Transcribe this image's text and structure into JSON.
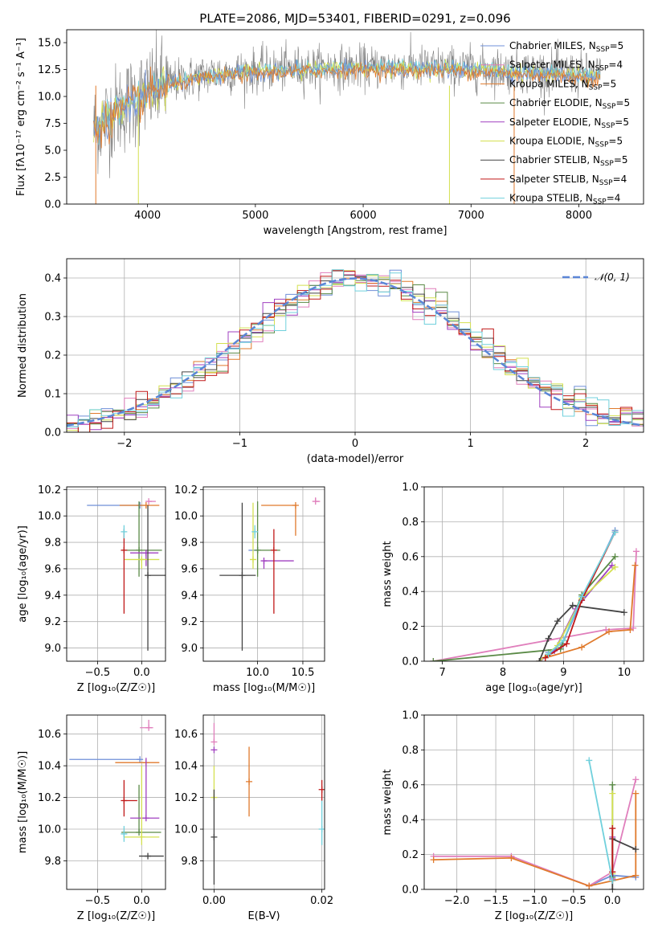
{
  "colors": {
    "chabrier_miles": "#6f8fd8",
    "salpeter_miles": "#e07fbc",
    "kroupa_miles": "#e07a2c",
    "chabrier_elodie": "#5a8a46",
    "salpeter_elodie": "#a040c0",
    "kroupa_elodie": "#d4e050",
    "chabrier_stelib": "#444444",
    "salpeter_stelib": "#c01818",
    "kroupa_stelib": "#70d0dc",
    "grey_data": "#808080",
    "normal_curve": "#5b86d6"
  },
  "chart_data": [
    {
      "type": "line",
      "id": "spectrum",
      "title": "PLATE=2086, MJD=53401, FIBERID=0291, z=0.096",
      "xlabel": "wavelength [Angstrom, rest frame]",
      "ylabel": "Flux [f$_\\lambda$10$^{-17}$ erg cm$^{-2}$ s$^{-1}$ A$^{-1}$]",
      "ylabel_display": "Flux [fλ10⁻¹⁷ erg cm⁻² s⁻¹ A⁻¹]",
      "xlim": [
        3250,
        8600
      ],
      "ylim": [
        0,
        16.2
      ],
      "xticks": [
        "4000",
        "5000",
        "6000",
        "7000",
        "8000"
      ],
      "yticks": [
        "0.0",
        "2.5",
        "5.0",
        "7.5",
        "10.0",
        "12.5",
        "15.0"
      ],
      "legend_position": "top-right",
      "legend": [
        {
          "label": "Chabrier MILES, N",
          "sub": "SSP",
          "tail": "=5",
          "color": "chabrier_miles"
        },
        {
          "label": "Salpeter MILES, N",
          "sub": "SSP",
          "tail": "=4",
          "color": "salpeter_miles"
        },
        {
          "label": "Kroupa MILES, N",
          "sub": "SSP",
          "tail": "=5",
          "color": "kroupa_miles"
        },
        {
          "label": "Chabrier ELODIE, N",
          "sub": "SSP",
          "tail": "=5",
          "color": "chabrier_elodie"
        },
        {
          "label": "Salpeter ELODIE, N",
          "sub": "SSP",
          "tail": "=5",
          "color": "salpeter_elodie"
        },
        {
          "label": "Kroupa ELODIE, N",
          "sub": "SSP",
          "tail": "=5",
          "color": "kroupa_elodie"
        },
        {
          "label": "Chabrier STELIB, N",
          "sub": "SSP",
          "tail": "=5",
          "color": "chabrier_stelib"
        },
        {
          "label": "Salpeter STELIB, N",
          "sub": "SSP",
          "tail": "=4",
          "color": "salpeter_stelib"
        },
        {
          "label": "Kroupa STELIB, N",
          "sub": "SSP",
          "tail": "=4",
          "color": "kroupa_stelib"
        }
      ],
      "continuum": {
        "x": [
          3500,
          3700,
          3900,
          4100,
          4300,
          4600,
          5000,
          5400,
          5800,
          6200,
          6600,
          7000,
          7400,
          7800,
          8200
        ],
        "y": [
          7.0,
          8.6,
          9.8,
          10.9,
          11.5,
          12.1,
          12.4,
          12.6,
          12.7,
          12.7,
          12.7,
          12.6,
          12.4,
          12.2,
          11.9
        ]
      }
    },
    {
      "type": "line",
      "id": "residuals",
      "xlabel": "(data-model)/error",
      "ylabel": "Normed distribution",
      "xlim": [
        -2.5,
        2.5
      ],
      "ylim": [
        0,
        0.45
      ],
      "xticks": [
        "−2",
        "−1",
        "0",
        "1",
        "2"
      ],
      "yticks": [
        "0.0",
        "0.1",
        "0.2",
        "0.3",
        "0.4"
      ],
      "legend_position": "top-right",
      "curve_label": "𝒩(0, 1)",
      "bin_width": 0.1
    },
    {
      "type": "scatter",
      "id": "age_vs_Z",
      "xlabel": "Z [log₁₀(Z/Z☉)]",
      "ylabel": "age  [log₁₀(age/yr)]",
      "xlim": [
        -0.85,
        0.27
      ],
      "ylim": [
        8.9,
        10.22
      ],
      "xticks": [
        "−0.5",
        "0.0"
      ],
      "yticks": [
        "9.0",
        "9.2",
        "9.4",
        "9.6",
        "9.8",
        "10.0",
        "10.2"
      ],
      "points": [
        {
          "m": "chabrier_miles",
          "x": -0.02,
          "xerr": [
            0.6,
            0.02
          ],
          "y": 10.08,
          "yerr": [
            0.0,
            0.0
          ]
        },
        {
          "m": "salpeter_miles",
          "x": 0.08,
          "xerr": [
            0.0,
            0.08
          ],
          "y": 10.11,
          "yerr": [
            0.0,
            0.0
          ]
        },
        {
          "m": "kroupa_miles",
          "x": 0.05,
          "xerr": [
            0.3,
            0.15
          ],
          "y": 10.08,
          "yerr": [
            0.0,
            0.0
          ]
        },
        {
          "m": "chabrier_elodie",
          "x": -0.03,
          "xerr": [
            0.2,
            0.26
          ],
          "y": 9.74,
          "yerr": [
            0.2,
            0.37
          ]
        },
        {
          "m": "salpeter_elodie",
          "x": 0.05,
          "xerr": [
            0.18,
            0.14
          ],
          "y": 9.72,
          "yerr": [
            0.1,
            0.0
          ]
        },
        {
          "m": "kroupa_elodie",
          "x": 0.0,
          "xerr": [
            0.2,
            0.2
          ],
          "y": 9.67,
          "yerr": [
            0.07,
            0.0
          ]
        },
        {
          "m": "chabrier_stelib",
          "x": 0.07,
          "xerr": [
            0.0,
            0.2
          ],
          "y": 9.55,
          "yerr": [
            0.57,
            0.53
          ]
        },
        {
          "m": "salpeter_stelib",
          "x": -0.2,
          "xerr": [
            0.0,
            0.0
          ],
          "y": 9.74,
          "yerr": [
            0.48,
            0.16
          ]
        },
        {
          "m": "kroupa_stelib",
          "x": -0.2,
          "xerr": [
            0.0,
            0.0
          ],
          "y": 9.88,
          "yerr": [
            0.05,
            0.05
          ]
        }
      ]
    },
    {
      "type": "scatter",
      "id": "age_vs_mass",
      "xlabel": "mass [log₁₀(M/M☉)]",
      "ylabel": "",
      "xlim": [
        9.4,
        10.74
      ],
      "ylim": [
        8.9,
        10.22
      ],
      "xticks": [
        "10.0",
        "10.5"
      ],
      "yticks": [
        "9.0",
        "9.2",
        "9.4",
        "9.6",
        "9.8",
        "10.0",
        "10.2"
      ],
      "points": [
        {
          "m": "chabrier_miles",
          "x": 10.0,
          "xerr": [
            0.1,
            0.0
          ],
          "y": 9.74,
          "yerr": [
            0.0,
            0.0
          ]
        },
        {
          "m": "salpeter_miles",
          "x": 10.64,
          "xerr": [
            0.0,
            0.05
          ],
          "y": 10.11,
          "yerr": [
            0.0,
            0.03
          ]
        },
        {
          "m": "kroupa_miles",
          "x": 10.42,
          "xerr": [
            0.38,
            0.0
          ],
          "y": 10.08,
          "yerr": [
            0.23,
            0.0
          ]
        },
        {
          "m": "chabrier_elodie",
          "x": 10.0,
          "xerr": [
            0.0,
            0.25
          ],
          "y": 9.74,
          "yerr": [
            0.2,
            0.37
          ]
        },
        {
          "m": "salpeter_elodie",
          "x": 10.07,
          "xerr": [
            0.0,
            0.33
          ],
          "y": 9.66,
          "yerr": [
            0.06,
            0.0
          ]
        },
        {
          "m": "kroupa_elodie",
          "x": 9.95,
          "xerr": [
            0.0,
            0.0
          ],
          "y": 9.67,
          "yerr": [
            0.07,
            0.43
          ]
        },
        {
          "m": "chabrier_stelib",
          "x": 9.83,
          "xerr": [
            0.25,
            0.15
          ],
          "y": 9.55,
          "yerr": [
            0.57,
            0.55
          ]
        },
        {
          "m": "salpeter_stelib",
          "x": 10.18,
          "xerr": [
            0.0,
            0.0
          ],
          "y": 9.74,
          "yerr": [
            0.48,
            0.16
          ]
        },
        {
          "m": "kroupa_stelib",
          "x": 9.97,
          "xerr": [
            0.0,
            0.0
          ],
          "y": 9.88,
          "yerr": [
            0.05,
            0.05
          ]
        }
      ]
    },
    {
      "type": "line",
      "id": "weight_vs_age",
      "xlabel": "age  [log₁₀(age/yr)]",
      "ylabel": "mass weight",
      "xlim": [
        6.7,
        10.32
      ],
      "ylim": [
        0,
        1.0
      ],
      "xticks": [
        "7",
        "8",
        "9",
        "10"
      ],
      "yticks": [
        "0.0",
        "0.2",
        "0.4",
        "0.6",
        "0.8",
        "1.0"
      ],
      "series": [
        {
          "m": "chabrier_miles",
          "x": [
            8.75,
            8.95,
            9.3,
            9.85
          ],
          "y": [
            0.05,
            0.08,
            0.35,
            0.75
          ]
        },
        {
          "m": "salpeter_miles",
          "x": [
            6.85,
            9.7,
            10.15,
            10.2
          ],
          "y": [
            0.0,
            0.18,
            0.19,
            0.63
          ]
        },
        {
          "m": "kroupa_miles",
          "x": [
            8.7,
            9.3,
            9.75,
            10.1,
            10.18
          ],
          "y": [
            0.02,
            0.08,
            0.17,
            0.18,
            0.55
          ]
        },
        {
          "m": "chabrier_elodie",
          "x": [
            6.85,
            8.95,
            9.3,
            9.85
          ],
          "y": [
            0.0,
            0.07,
            0.38,
            0.6
          ]
        },
        {
          "m": "salpeter_elodie",
          "x": [
            8.6,
            8.85,
            9.2,
            9.8
          ],
          "y": [
            0.0,
            0.06,
            0.3,
            0.55
          ]
        },
        {
          "m": "kroupa_elodie",
          "x": [
            8.6,
            8.9,
            9.3,
            9.85
          ],
          "y": [
            0.0,
            0.09,
            0.36,
            0.54
          ]
        },
        {
          "m": "chabrier_stelib",
          "x": [
            8.6,
            8.75,
            8.9,
            9.15,
            10.0
          ],
          "y": [
            0.0,
            0.13,
            0.23,
            0.32,
            0.28
          ]
        },
        {
          "m": "salpeter_stelib",
          "x": [
            8.7,
            9.05,
            9.3,
            9.85
          ],
          "y": [
            0.02,
            0.1,
            0.35,
            0.74
          ]
        },
        {
          "m": "kroupa_stelib",
          "x": [
            8.75,
            9.0,
            9.3,
            9.85
          ],
          "y": [
            0.04,
            0.12,
            0.37,
            0.74
          ]
        }
      ]
    },
    {
      "type": "scatter",
      "id": "mass_vs_Z",
      "xlabel": "Z [log₁₀(Z/Z☉)]",
      "ylabel": "mass [log₁₀(M/M☉)]",
      "xlim": [
        -0.85,
        0.27
      ],
      "ylim": [
        9.62,
        10.72
      ],
      "xticks": [
        "−0.5",
        "0.0"
      ],
      "yticks": [
        "9.8",
        "10.0",
        "10.2",
        "10.4",
        "10.6"
      ],
      "points": [
        {
          "m": "chabrier_miles",
          "x": -0.02,
          "xerr": [
            0.8,
            0.0
          ],
          "y": 10.44,
          "yerr": [
            0.0,
            0.0
          ]
        },
        {
          "m": "salpeter_miles",
          "x": 0.08,
          "xerr": [
            0.1,
            0.05
          ],
          "y": 10.64,
          "yerr": [
            0.0,
            0.05
          ]
        },
        {
          "m": "kroupa_miles",
          "x": 0.05,
          "xerr": [
            0.35,
            0.15
          ],
          "y": 10.42,
          "yerr": [
            0.0,
            0.0
          ]
        },
        {
          "m": "chabrier_elodie",
          "x": -0.03,
          "xerr": [
            0.2,
            0.25
          ],
          "y": 9.98,
          "yerr": [
            0.0,
            0.3
          ]
        },
        {
          "m": "salpeter_elodie",
          "x": 0.05,
          "xerr": [
            0.18,
            0.15
          ],
          "y": 10.07,
          "yerr": [
            0.0,
            0.38
          ]
        },
        {
          "m": "kroupa_elodie",
          "x": 0.0,
          "xerr": [
            0.2,
            0.2
          ],
          "y": 9.95,
          "yerr": [
            0.05,
            0.45
          ]
        },
        {
          "m": "chabrier_stelib",
          "x": 0.07,
          "xerr": [
            0.1,
            0.18
          ],
          "y": 9.83,
          "yerr": [
            0.0,
            0.0
          ]
        },
        {
          "m": "salpeter_stelib",
          "x": -0.2,
          "xerr": [
            0.0,
            0.15
          ],
          "y": 10.18,
          "yerr": [
            0.1,
            0.13
          ]
        },
        {
          "m": "kroupa_stelib",
          "x": -0.2,
          "xerr": [
            0.0,
            0.0
          ],
          "y": 9.97,
          "yerr": [
            0.05,
            0.05
          ]
        }
      ]
    },
    {
      "type": "scatter",
      "id": "mass_vs_ebv",
      "xlabel": "E(B-V)",
      "ylabel": "",
      "xlim": [
        -0.002,
        0.0205
      ],
      "ylim": [
        9.62,
        10.72
      ],
      "xticks": [
        "0.00",
        "0.02"
      ],
      "yticks": [
        "9.8",
        "10.0",
        "10.2",
        "10.4",
        "10.6"
      ],
      "points": [
        {
          "m": "salpeter_miles",
          "x": 0.0,
          "xerr": [
            0.0,
            0.0
          ],
          "y": 10.55,
          "yerr": [
            0.0,
            0.12
          ]
        },
        {
          "m": "salpeter_elodie",
          "x": 0.0,
          "xerr": [
            0.0,
            0.0
          ],
          "y": 10.5,
          "yerr": [
            0.0,
            0.0
          ]
        },
        {
          "m": "kroupa_elodie",
          "x": 0.0,
          "xerr": [
            0.0,
            0.0
          ],
          "y": 10.2,
          "yerr": [
            0.0,
            0.2
          ]
        },
        {
          "m": "chabrier_stelib",
          "x": 0.0,
          "xerr": [
            0.0,
            0.0
          ],
          "y": 9.95,
          "yerr": [
            0.3,
            0.3
          ]
        },
        {
          "m": "kroupa_miles",
          "x": 0.0065,
          "xerr": [
            0.0,
            0.0
          ],
          "y": 10.3,
          "yerr": [
            0.22,
            0.22
          ]
        },
        {
          "m": "salpeter_stelib",
          "x": 0.02,
          "xerr": [
            0.0,
            0.0
          ],
          "y": 10.25,
          "yerr": [
            0.07,
            0.06
          ]
        },
        {
          "m": "kroupa_stelib",
          "x": 0.02,
          "xerr": [
            0.0,
            0.0
          ],
          "y": 10.0,
          "yerr": [
            0.1,
            0.18
          ]
        }
      ]
    },
    {
      "type": "line",
      "id": "weight_vs_Z",
      "xlabel": "Z [log₁₀(Z/Z☉)]",
      "ylabel": "mass weight",
      "xlim": [
        -2.42,
        0.4
      ],
      "ylim": [
        0,
        1.0
      ],
      "xticks": [
        "−2.0",
        "−1.5",
        "−1.0",
        "−0.5",
        "0.0"
      ],
      "yticks": [
        "0.0",
        "0.2",
        "0.4",
        "0.6",
        "0.8",
        "1.0"
      ],
      "series": [
        {
          "m": "chabrier_miles",
          "x": [
            -0.3,
            0.0,
            0.3
          ],
          "y": [
            0.02,
            0.08,
            0.07
          ]
        },
        {
          "m": "salpeter_miles",
          "x": [
            -2.3,
            -1.3,
            -0.3,
            0.0,
            0.3
          ],
          "y": [
            0.19,
            0.19,
            0.02,
            0.1,
            0.63
          ]
        },
        {
          "m": "kroupa_miles",
          "x": [
            -2.3,
            -1.3,
            -0.3,
            0.0,
            0.3,
            0.3
          ],
          "y": [
            0.17,
            0.18,
            0.02,
            0.05,
            0.08,
            0.55
          ]
        },
        {
          "m": "chabrier_elodie",
          "x": [
            0.0,
            0.0
          ],
          "y": [
            0.07,
            0.6
          ]
        },
        {
          "m": "salpeter_elodie",
          "x": [
            0.0,
            0.0
          ],
          "y": [
            0.06,
            0.3
          ]
        },
        {
          "m": "kroupa_elodie",
          "x": [
            0.0,
            0.0
          ],
          "y": [
            0.09,
            0.55
          ]
        },
        {
          "m": "chabrier_stelib",
          "x": [
            0.0,
            0.0,
            0.3
          ],
          "y": [
            0.0,
            0.29,
            0.23
          ]
        },
        {
          "m": "salpeter_stelib",
          "x": [
            0.0,
            0.0
          ],
          "y": [
            0.1,
            0.35
          ]
        },
        {
          "m": "kroupa_stelib",
          "x": [
            -0.3,
            0.0
          ],
          "y": [
            0.74,
            0.05
          ]
        }
      ]
    }
  ]
}
